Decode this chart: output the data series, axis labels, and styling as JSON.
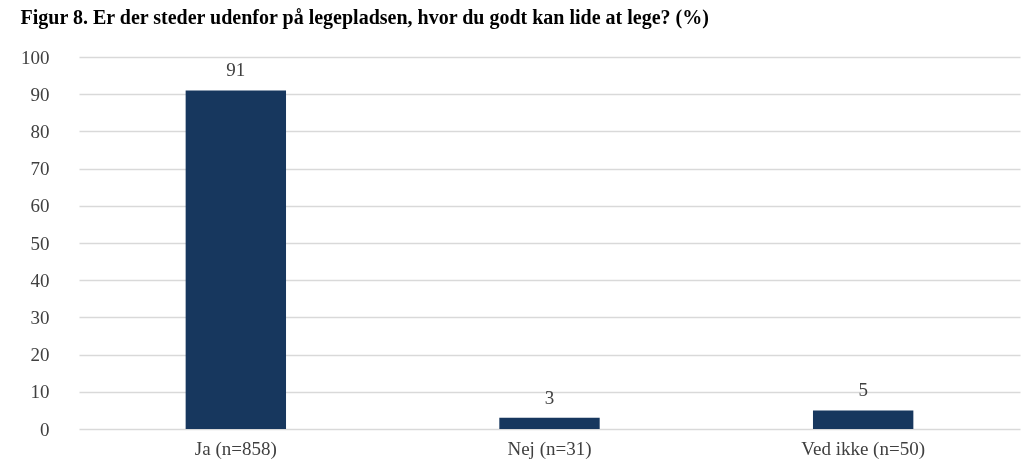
{
  "chart_data": {
    "type": "bar",
    "title": "Figur 8. Er der steder udenfor på legepladsen, hvor du godt kan lide at lege? (%)",
    "categories": [
      "Ja (n=858)",
      "Nej (n=31)",
      "Ved ikke (n=50)"
    ],
    "values": [
      91,
      3,
      5
    ],
    "color": "#17375e",
    "data_labels": true,
    "ylim": [
      0,
      100
    ],
    "yticks": [
      0,
      10,
      20,
      30,
      40,
      50,
      60,
      70,
      80,
      90,
      100
    ],
    "grid": "y"
  }
}
